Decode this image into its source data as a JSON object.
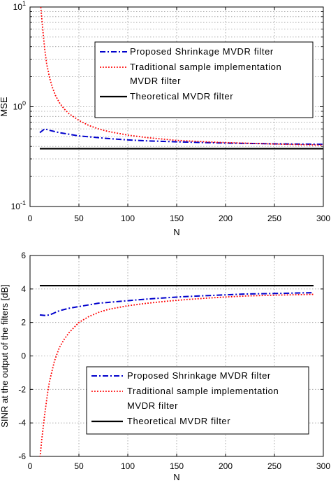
{
  "chart_data": [
    {
      "type": "line",
      "xlabel": "N",
      "ylabel": "MSE",
      "xlim": [
        0,
        300
      ],
      "ylim": [
        0.1,
        10
      ],
      "yscale": "log",
      "x_ticks": [
        "0",
        "50",
        "100",
        "150",
        "200",
        "250",
        "300"
      ],
      "y_ticks": [
        {
          "base": "10",
          "exp": "1"
        },
        {
          "base": "10",
          "exp": "0"
        },
        {
          "base": "10",
          "exp": "-1"
        }
      ],
      "grid": true,
      "legend_position": "top-right",
      "series": [
        {
          "name": "Proposed Shrinkage MVDR filter",
          "style": "dashdot",
          "color": "#0000cc",
          "x": [
            10,
            15,
            20,
            30,
            40,
            50,
            60,
            80,
            100,
            120,
            150,
            180,
            200,
            250,
            300
          ],
          "y": [
            0.55,
            0.6,
            0.58,
            0.55,
            0.53,
            0.51,
            0.5,
            0.48,
            0.465,
            0.455,
            0.445,
            0.437,
            0.432,
            0.425,
            0.42
          ]
        },
        {
          "name_lines": [
            "Traditional sample implementation",
            "MVDR filter"
          ],
          "style": "dotted",
          "color": "#ff0000",
          "x": [
            11,
            13,
            15,
            17,
            20,
            23,
            26,
            30,
            35,
            40,
            50,
            60,
            70,
            80,
            100,
            120,
            150,
            180,
            200,
            250,
            300
          ],
          "y": [
            10,
            6,
            3.8,
            2.7,
            1.95,
            1.55,
            1.3,
            1.1,
            0.95,
            0.85,
            0.73,
            0.65,
            0.6,
            0.565,
            0.52,
            0.49,
            0.46,
            0.445,
            0.437,
            0.423,
            0.412
          ]
        },
        {
          "name": "Theoretical MVDR filter",
          "style": "solid",
          "color": "#000000",
          "x": [
            10,
            300
          ],
          "y": [
            0.38,
            0.38
          ]
        }
      ]
    },
    {
      "type": "line",
      "xlabel": "N",
      "ylabel": "SINR at the output of the filters [dB]",
      "xlim": [
        0,
        300
      ],
      "ylim": [
        -6,
        6
      ],
      "x_ticks": [
        "0",
        "50",
        "100",
        "150",
        "200",
        "250",
        "300"
      ],
      "y_ticks": [
        "6",
        "4",
        "2",
        "0",
        "-2",
        "-4",
        "-6"
      ],
      "grid": true,
      "legend_position": "bottom-right",
      "series": [
        {
          "name": "Proposed Shrinkage MVDR filter",
          "style": "dashdot",
          "color": "#0000cc",
          "x": [
            10,
            15,
            20,
            30,
            40,
            50,
            60,
            70,
            80,
            100,
            120,
            140,
            160,
            180,
            200,
            220,
            250,
            290
          ],
          "y": [
            2.45,
            2.42,
            2.45,
            2.7,
            2.85,
            2.95,
            3.05,
            3.15,
            3.2,
            3.3,
            3.4,
            3.48,
            3.55,
            3.6,
            3.65,
            3.7,
            3.73,
            3.78
          ]
        },
        {
          "name_lines": [
            "Traditional sample implementation",
            "MVDR filter"
          ],
          "style": "dotted",
          "color": "#ff0000",
          "x": [
            10,
            12,
            15,
            18,
            20,
            25,
            30,
            35,
            40,
            50,
            60,
            70,
            80,
            100,
            120,
            140,
            160,
            180,
            200,
            220,
            250,
            290
          ],
          "y": [
            -6.2,
            -5.0,
            -3.5,
            -2.2,
            -1.5,
            -0.3,
            0.5,
            1.0,
            1.4,
            2.0,
            2.35,
            2.6,
            2.78,
            3.0,
            3.15,
            3.27,
            3.37,
            3.45,
            3.52,
            3.58,
            3.63,
            3.68
          ]
        },
        {
          "name": "Theoretical MVDR filter",
          "style": "solid",
          "color": "#000000",
          "x": [
            10,
            290
          ],
          "y": [
            4.2,
            4.2
          ]
        }
      ]
    }
  ]
}
